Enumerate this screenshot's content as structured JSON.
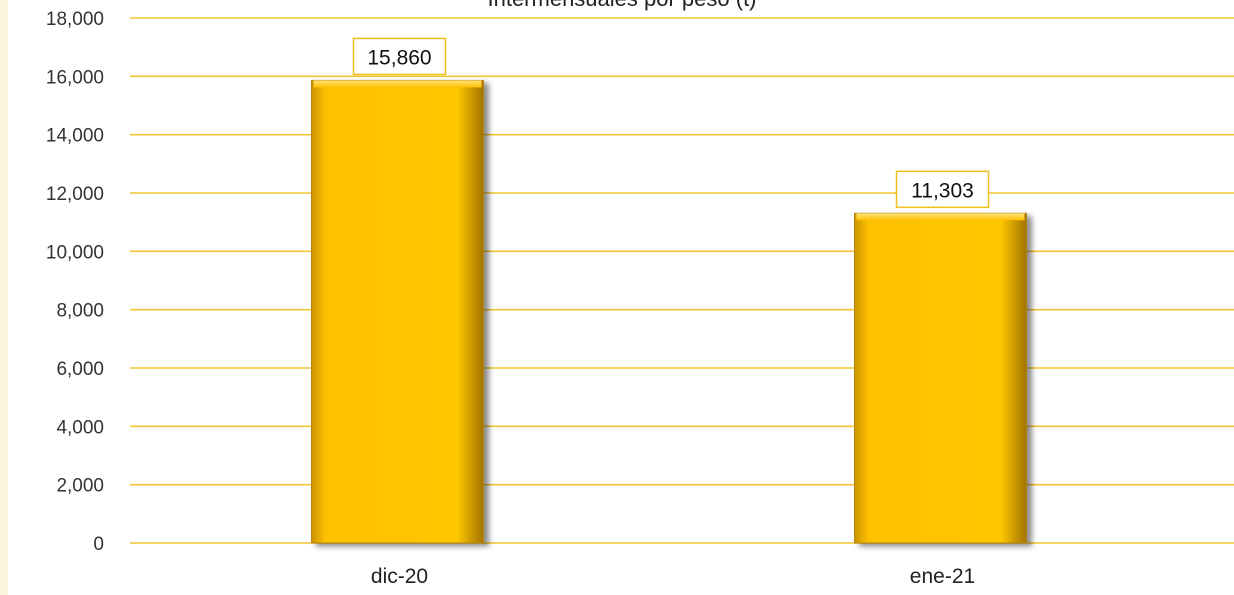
{
  "chart_data": {
    "type": "bar",
    "title": "Intermensuales por peso (t)",
    "categories": [
      "dic-20",
      "ene-21"
    ],
    "values": [
      15860,
      11303
    ],
    "data_labels": [
      "15,860",
      "11,303"
    ],
    "y_ticks": [
      "0",
      "2,000",
      "4,000",
      "6,000",
      "8,000",
      "10,000",
      "12,000",
      "14,000",
      "16,000",
      "18,000"
    ],
    "ylim": [
      0,
      18000
    ],
    "y_step": 2000,
    "grid": true,
    "legend": "none",
    "colors": {
      "bar": "#ffc000",
      "bar_edge": "#b8860b",
      "grid": "#f2c530",
      "label_border": "#f0c020"
    }
  }
}
